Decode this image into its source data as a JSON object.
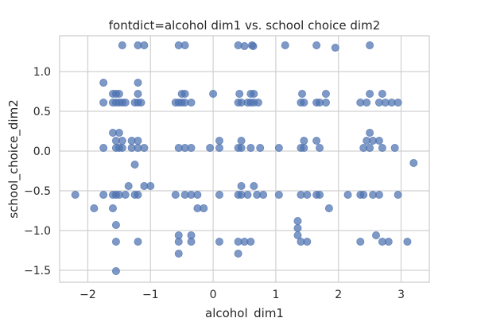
{
  "chart_data": {
    "type": "scatter",
    "title": "fontdict=alcohol dim1 vs. school choice dim2",
    "xlabel": "alcohol_dim1",
    "ylabel": "school_choice_dim2",
    "xlim": [
      -2.45,
      3.45
    ],
    "ylim": [
      -1.65,
      1.45
    ],
    "xticks": [
      -2,
      -1,
      0,
      1,
      2,
      3
    ],
    "xtick_labels": [
      "−2",
      "−1",
      "0",
      "1",
      "2",
      "3"
    ],
    "yticks": [
      -1.5,
      -1.0,
      -0.5,
      0.0,
      0.5,
      1.0
    ],
    "ytick_labels": [
      "−1.5",
      "−1.0",
      "−0.5",
      "0.0",
      "0.5",
      "1.0"
    ],
    "grid": true,
    "color": "#4c72b0",
    "points": [
      [
        -1.45,
        1.33
      ],
      [
        -1.2,
        1.33
      ],
      [
        -1.1,
        1.33
      ],
      [
        -0.55,
        1.33
      ],
      [
        -0.45,
        1.33
      ],
      [
        0.4,
        1.33
      ],
      [
        0.5,
        1.32
      ],
      [
        0.62,
        1.33
      ],
      [
        0.64,
        1.32
      ],
      [
        1.15,
        1.33
      ],
      [
        1.65,
        1.33
      ],
      [
        1.95,
        1.3
      ],
      [
        2.5,
        1.33
      ],
      [
        -1.75,
        0.86
      ],
      [
        -1.2,
        0.86
      ],
      [
        -1.6,
        0.72
      ],
      [
        -1.55,
        0.72
      ],
      [
        -1.5,
        0.72
      ],
      [
        -1.2,
        0.72
      ],
      [
        -0.5,
        0.72
      ],
      [
        -0.45,
        0.72
      ],
      [
        0.0,
        0.72
      ],
      [
        0.42,
        0.72
      ],
      [
        0.6,
        0.72
      ],
      [
        0.65,
        0.72
      ],
      [
        1.42,
        0.72
      ],
      [
        1.8,
        0.72
      ],
      [
        2.7,
        0.72
      ],
      [
        2.5,
        0.72
      ],
      [
        -1.75,
        0.61
      ],
      [
        -1.6,
        0.61
      ],
      [
        -1.55,
        0.61
      ],
      [
        -1.5,
        0.61
      ],
      [
        -1.45,
        0.61
      ],
      [
        -1.4,
        0.61
      ],
      [
        -1.25,
        0.61
      ],
      [
        -1.2,
        0.61
      ],
      [
        -1.15,
        0.61
      ],
      [
        -0.6,
        0.61
      ],
      [
        -0.55,
        0.61
      ],
      [
        -0.5,
        0.61
      ],
      [
        -0.45,
        0.61
      ],
      [
        -0.35,
        0.61
      ],
      [
        0.4,
        0.61
      ],
      [
        0.45,
        0.61
      ],
      [
        0.55,
        0.61
      ],
      [
        0.6,
        0.61
      ],
      [
        0.65,
        0.61
      ],
      [
        0.72,
        0.61
      ],
      [
        1.4,
        0.61
      ],
      [
        1.45,
        0.61
      ],
      [
        1.65,
        0.61
      ],
      [
        1.7,
        0.61
      ],
      [
        1.8,
        0.61
      ],
      [
        2.35,
        0.61
      ],
      [
        2.45,
        0.61
      ],
      [
        2.65,
        0.61
      ],
      [
        2.75,
        0.61
      ],
      [
        2.85,
        0.61
      ],
      [
        2.95,
        0.61
      ],
      [
        -1.6,
        0.23
      ],
      [
        -1.5,
        0.23
      ],
      [
        2.5,
        0.23
      ],
      [
        -1.55,
        0.13
      ],
      [
        -1.45,
        0.13
      ],
      [
        -1.3,
        0.13
      ],
      [
        -1.2,
        0.13
      ],
      [
        0.1,
        0.13
      ],
      [
        0.45,
        0.13
      ],
      [
        1.45,
        0.13
      ],
      [
        1.65,
        0.13
      ],
      [
        2.45,
        0.13
      ],
      [
        2.55,
        0.13
      ],
      [
        2.65,
        0.13
      ],
      [
        -1.75,
        0.04
      ],
      [
        -1.55,
        0.04
      ],
      [
        -1.5,
        0.04
      ],
      [
        -1.45,
        0.04
      ],
      [
        -1.3,
        0.04
      ],
      [
        -1.2,
        0.04
      ],
      [
        -1.1,
        0.04
      ],
      [
        -0.55,
        0.04
      ],
      [
        -0.45,
        0.04
      ],
      [
        -0.35,
        0.04
      ],
      [
        -0.05,
        0.04
      ],
      [
        0.1,
        0.04
      ],
      [
        0.4,
        0.04
      ],
      [
        0.45,
        0.04
      ],
      [
        0.6,
        0.04
      ],
      [
        0.75,
        0.04
      ],
      [
        1.05,
        0.04
      ],
      [
        1.4,
        0.04
      ],
      [
        1.45,
        0.04
      ],
      [
        1.7,
        0.04
      ],
      [
        2.4,
        0.04
      ],
      [
        2.5,
        0.04
      ],
      [
        2.7,
        0.04
      ],
      [
        2.9,
        0.04
      ],
      [
        -1.25,
        -0.17
      ],
      [
        3.2,
        -0.15
      ],
      [
        -1.35,
        -0.44
      ],
      [
        -1.1,
        -0.44
      ],
      [
        -1.0,
        -0.44
      ],
      [
        0.45,
        -0.44
      ],
      [
        0.65,
        -0.44
      ],
      [
        -2.2,
        -0.55
      ],
      [
        -1.75,
        -0.55
      ],
      [
        -1.6,
        -0.55
      ],
      [
        -1.55,
        -0.55
      ],
      [
        -1.5,
        -0.55
      ],
      [
        -1.4,
        -0.55
      ],
      [
        -1.25,
        -0.55
      ],
      [
        -1.2,
        -0.55
      ],
      [
        -0.6,
        -0.55
      ],
      [
        -0.45,
        -0.55
      ],
      [
        -0.35,
        -0.55
      ],
      [
        -0.25,
        -0.55
      ],
      [
        0.1,
        -0.55
      ],
      [
        0.4,
        -0.55
      ],
      [
        0.45,
        -0.55
      ],
      [
        0.55,
        -0.55
      ],
      [
        0.7,
        -0.55
      ],
      [
        0.8,
        -0.55
      ],
      [
        1.05,
        -0.55
      ],
      [
        1.4,
        -0.55
      ],
      [
        1.5,
        -0.55
      ],
      [
        1.65,
        -0.55
      ],
      [
        1.7,
        -0.55
      ],
      [
        2.15,
        -0.55
      ],
      [
        2.35,
        -0.55
      ],
      [
        2.4,
        -0.55
      ],
      [
        2.55,
        -0.55
      ],
      [
        2.65,
        -0.55
      ],
      [
        2.95,
        -0.55
      ],
      [
        -1.9,
        -0.72
      ],
      [
        -1.6,
        -0.72
      ],
      [
        -0.25,
        -0.72
      ],
      [
        -0.15,
        -0.72
      ],
      [
        1.85,
        -0.72
      ],
      [
        1.35,
        -0.88
      ],
      [
        -1.55,
        -0.93
      ],
      [
        1.35,
        -0.97
      ],
      [
        -0.55,
        -1.06
      ],
      [
        2.6,
        -1.06
      ],
      [
        1.35,
        -1.06
      ],
      [
        -0.35,
        -1.06
      ],
      [
        -1.55,
        -1.14
      ],
      [
        -1.2,
        -1.14
      ],
      [
        -0.55,
        -1.14
      ],
      [
        -0.35,
        -1.14
      ],
      [
        0.1,
        -1.14
      ],
      [
        0.4,
        -1.14
      ],
      [
        0.5,
        -1.14
      ],
      [
        0.6,
        -1.14
      ],
      [
        1.4,
        -1.14
      ],
      [
        1.5,
        -1.14
      ],
      [
        2.35,
        -1.14
      ],
      [
        2.7,
        -1.14
      ],
      [
        2.8,
        -1.14
      ],
      [
        3.1,
        -1.14
      ],
      [
        -0.55,
        -1.29
      ],
      [
        0.4,
        -1.29
      ],
      [
        -1.55,
        -1.51
      ]
    ]
  }
}
